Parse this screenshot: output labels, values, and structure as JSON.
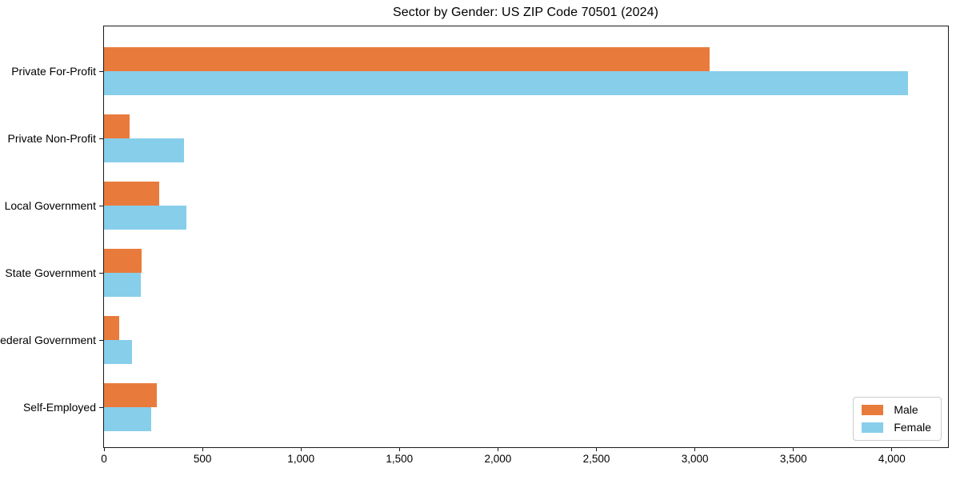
{
  "chart_data": {
    "type": "bar",
    "orientation": "horizontal",
    "title": "Sector by Gender: US ZIP Code 70501 (2024)",
    "categories": [
      "Private For-Profit",
      "Private Non-Profit",
      "Local Government",
      "State Government",
      "Federal Government",
      "Self-Employed"
    ],
    "series": [
      {
        "name": "Male",
        "color": "#E87B3C",
        "values": [
          3075,
          130,
          280,
          190,
          78,
          268
        ]
      },
      {
        "name": "Female",
        "color": "#87CEEB",
        "values": [
          4080,
          405,
          418,
          187,
          142,
          240
        ]
      }
    ],
    "xlabel": "",
    "ylabel": "",
    "xlim": [
      0,
      4285
    ],
    "xticks": [
      0,
      500,
      1000,
      1500,
      2000,
      2500,
      3000,
      3500,
      4000
    ],
    "xtick_labels": [
      "0",
      "500",
      "1,000",
      "1,500",
      "2,000",
      "2,500",
      "3,000",
      "3,500",
      "4,000"
    ],
    "grid": false,
    "legend": {
      "position": "lower-right",
      "entries": [
        "Male",
        "Female"
      ]
    }
  }
}
